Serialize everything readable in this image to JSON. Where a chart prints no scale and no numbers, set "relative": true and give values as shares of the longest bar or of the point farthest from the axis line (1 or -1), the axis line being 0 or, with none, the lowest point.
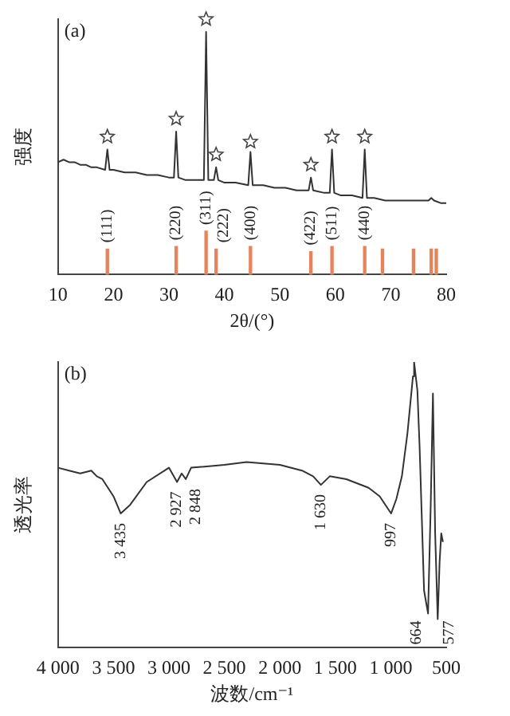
{
  "chart_data": [
    {
      "type": "line",
      "title": "(a)",
      "xlabel": "2θ/(°)",
      "ylabel": "强度",
      "relative": true,
      "xlim": [
        10,
        80
      ],
      "xticks": [
        10,
        20,
        30,
        40,
        50,
        60,
        70,
        80
      ],
      "tick_labels": "x",
      "legend": false,
      "grid": false,
      "marker": "none",
      "line_style": "solid",
      "series": [
        {
          "color": "#333333",
          "x": [
            10,
            11,
            12,
            13,
            14,
            15,
            16,
            17,
            18.5,
            18.9,
            19.3,
            20,
            22,
            24,
            26,
            28,
            30,
            30.9,
            31.3,
            31.7,
            33,
            35,
            36.3,
            36.7,
            37.1,
            38.1,
            38.5,
            38.9,
            40,
            42,
            44.3,
            44.7,
            45.1,
            47,
            49,
            51,
            53,
            55.2,
            55.6,
            56,
            58,
            59,
            59.4,
            59.8,
            61,
            63,
            64.9,
            65.3,
            65.7,
            67,
            69,
            71,
            73,
            75,
            76.8,
            77.3,
            77.8,
            79,
            80
          ],
          "values": [
            0.44,
            0.45,
            0.44,
            0.44,
            0.43,
            0.43,
            0.42,
            0.42,
            0.41,
            0.49,
            0.41,
            0.41,
            0.4,
            0.4,
            0.39,
            0.39,
            0.38,
            0.38,
            0.56,
            0.38,
            0.37,
            0.37,
            0.37,
            0.95,
            0.37,
            0.37,
            0.42,
            0.37,
            0.36,
            0.36,
            0.35,
            0.48,
            0.35,
            0.35,
            0.34,
            0.34,
            0.33,
            0.33,
            0.38,
            0.33,
            0.32,
            0.32,
            0.49,
            0.32,
            0.31,
            0.31,
            0.3,
            0.49,
            0.3,
            0.3,
            0.29,
            0.29,
            0.29,
            0.29,
            0.29,
            0.3,
            0.29,
            0.28,
            0.28
          ]
        },
        {
          "type": "scatter",
          "color": "#444444",
          "marker": "star",
          "x": [
            18.9,
            31.3,
            36.7,
            38.5,
            44.7,
            55.6,
            59.4,
            65.3
          ],
          "values": [
            0.54,
            0.61,
            1.0,
            0.47,
            0.52,
            0.43,
            0.54,
            0.54
          ]
        },
        {
          "type": "bar",
          "color": "#e8825a",
          "x": [
            18.9,
            31.3,
            36.7,
            38.5,
            44.7,
            55.6,
            59.4,
            65.3,
            68.5,
            74.1,
            77.3,
            78.2
          ],
          "values": [
            0.1,
            0.11,
            0.17,
            0.1,
            0.11,
            0.09,
            0.11,
            0.11,
            0.1,
            0.1,
            0.1,
            0.1
          ]
        }
      ],
      "annotations": [
        {
          "text": "(111)",
          "x": 18.9,
          "y": 0.1
        },
        {
          "text": "(220)",
          "x": 31.3,
          "y": 0.11
        },
        {
          "text": "(311)",
          "x": 36.7,
          "y": 0.17
        },
        {
          "text": "(222)",
          "x": 38.5,
          "y": 0.1
        },
        {
          "text": "(400)",
          "x": 44.7,
          "y": 0.11
        },
        {
          "text": "(422)",
          "x": 55.6,
          "y": 0.09
        },
        {
          "text": "(511)",
          "x": 59.4,
          "y": 0.11
        },
        {
          "text": "(440)",
          "x": 65.3,
          "y": 0.11
        }
      ]
    },
    {
      "type": "line",
      "title": "(b)",
      "xlabel": "波数/cm⁻¹",
      "ylabel": "透光率",
      "relative": true,
      "xlim": [
        4000,
        500
      ],
      "xticks": [
        {
          "value": 4000,
          "label": "4 000"
        },
        {
          "value": 3500,
          "label": "3 500"
        },
        {
          "value": 3000,
          "label": "3 000"
        },
        {
          "value": 2500,
          "label": "2 500"
        },
        {
          "value": 2000,
          "label": "2 000"
        },
        {
          "value": 1500,
          "label": "1 500"
        },
        {
          "value": 1000,
          "label": "1 000"
        },
        500
      ],
      "tick_labels": "x",
      "legend": false,
      "grid": false,
      "marker": "none",
      "line_style": "solid",
      "series": [
        {
          "color": "#333333",
          "x": [
            4000,
            3900,
            3800,
            3700,
            3650,
            3600,
            3500,
            3435,
            3350,
            3200,
            3000,
            2927,
            2885,
            2848,
            2800,
            2500,
            2300,
            2000,
            1800,
            1700,
            1630,
            1550,
            1400,
            1200,
            1100,
            997,
            950,
            900,
            850,
            800,
            790,
            760,
            740,
            700,
            664,
            640,
            620,
            600,
            577,
            560,
            545,
            530
          ],
          "values": [
            0.63,
            0.62,
            0.61,
            0.62,
            0.6,
            0.59,
            0.53,
            0.47,
            0.5,
            0.58,
            0.63,
            0.58,
            0.61,
            0.59,
            0.63,
            0.64,
            0.65,
            0.64,
            0.62,
            0.6,
            0.57,
            0.6,
            0.59,
            0.56,
            0.53,
            0.47,
            0.52,
            0.6,
            0.75,
            0.95,
            1.0,
            0.9,
            0.7,
            0.2,
            0.12,
            0.5,
            0.89,
            0.4,
            0.1,
            0.3,
            0.4,
            0.37
          ]
        }
      ],
      "annotations": [
        {
          "text": "3 435",
          "x": 3435,
          "y": 0.47
        },
        {
          "text": "2 927",
          "x": 2927,
          "y": 0.58
        },
        {
          "text": "2 848",
          "x": 2848,
          "y": 0.59
        },
        {
          "text": "1 630",
          "x": 1630,
          "y": 0.57
        },
        {
          "text": "997",
          "x": 997,
          "y": 0.47
        },
        {
          "text": "664",
          "x": 664,
          "y": 0.12
        },
        {
          "text": "577",
          "x": 577,
          "y": 0.1
        }
      ]
    }
  ]
}
